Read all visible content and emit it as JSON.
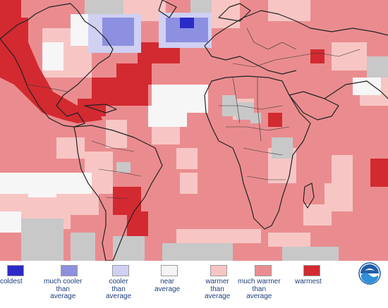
{
  "legend": {
    "items": [
      {
        "label": "coldest",
        "color": "#2b2bc8"
      },
      {
        "label": "much cooler\nthan\naverage",
        "color": "#8d8fe0"
      },
      {
        "label": "cooler\nthan\naverage",
        "color": "#cfd0f2"
      },
      {
        "label": "near\naverage",
        "color": "#f4f4f4"
      },
      {
        "label": "warmer\nthan\naverage",
        "color": "#f7c6c4"
      },
      {
        "label": "much warmer\nthan\naverage",
        "color": "#ea8c8f"
      },
      {
        "label": "warmest",
        "color": "#d22a30"
      }
    ]
  },
  "map": {
    "base_color": "#ea8c8f",
    "land_no_data_color": "#c8c8c8"
  },
  "logo": {
    "icon": "noaa-logo-icon"
  }
}
